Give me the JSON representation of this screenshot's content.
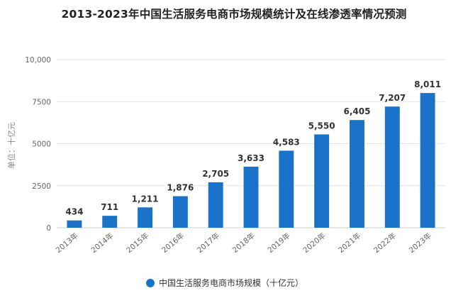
{
  "chart_data": {
    "type": "bar",
    "title": "2013-2023年中国生活服务电商市场规模统计及在线渗透率情况预测",
    "ylabel": "单位：十亿元",
    "xlabel": "",
    "categories": [
      "2013年",
      "2014年",
      "2015年",
      "2016年",
      "2017年",
      "2018年",
      "2019年",
      "2020年",
      "2021年",
      "2022年",
      "2023年"
    ],
    "series": [
      {
        "name": "中国生活服务电商市场规模（十亿元）",
        "values": [
          434,
          711,
          1211,
          1876,
          2705,
          3633,
          4583,
          5550,
          6405,
          7207,
          8011
        ],
        "color": "#1a73c8"
      }
    ],
    "data_labels": [
      "434",
      "711",
      "1,211",
      "1,876",
      "2,705",
      "3,633",
      "4,583",
      "5,550",
      "6,405",
      "7,207",
      "8,011"
    ],
    "yticks": [
      0,
      2500,
      5000,
      7500,
      10000
    ],
    "ytick_labels": [
      "0",
      "2500",
      "5000",
      "7500",
      "10,000"
    ],
    "ylim": [
      0,
      10000
    ],
    "grid": true,
    "legend_position": "bottom"
  }
}
